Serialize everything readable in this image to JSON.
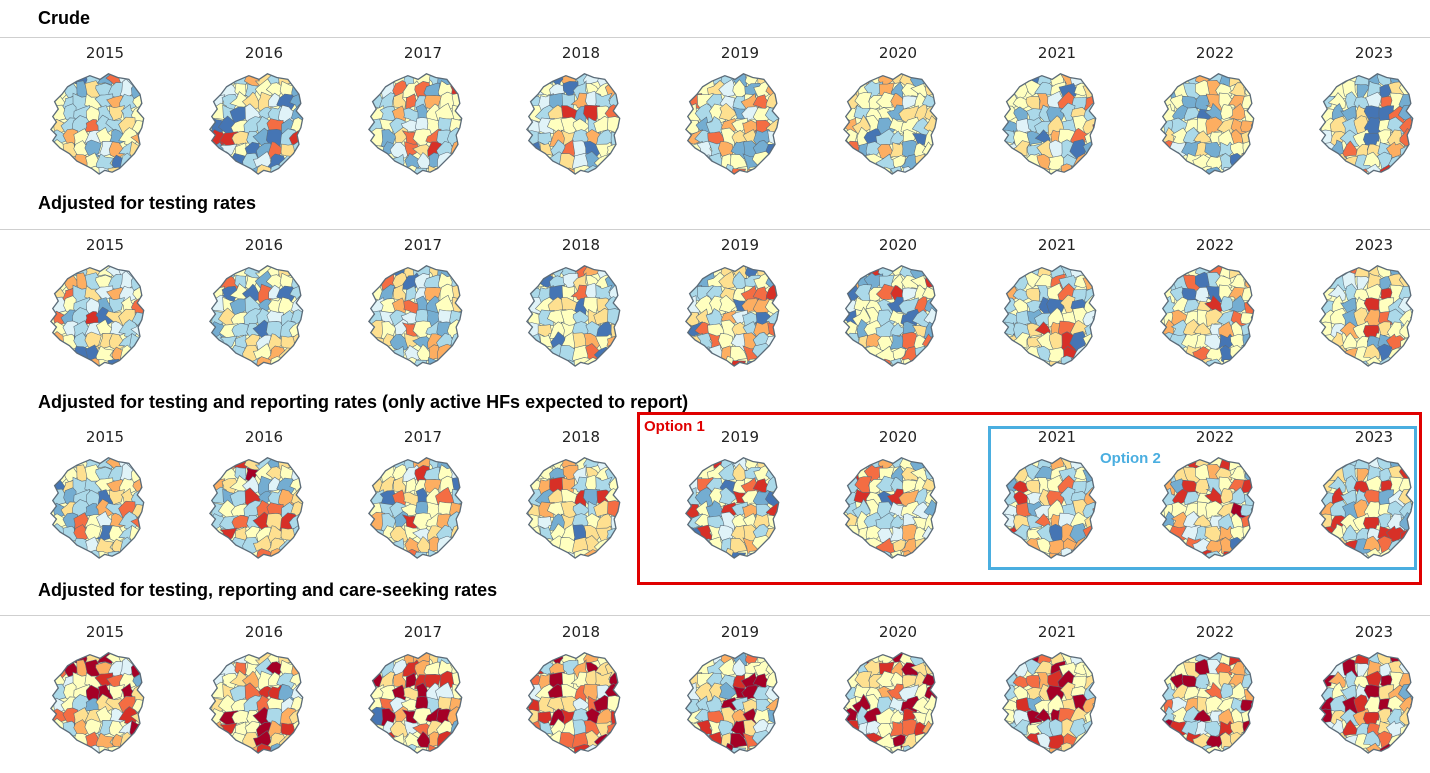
{
  "years": [
    "2015",
    "2016",
    "2017",
    "2018",
    "2019",
    "2020",
    "2021",
    "2022",
    "2023"
  ],
  "sections": [
    {
      "id": "crude",
      "title": "Crude"
    },
    {
      "id": "testing",
      "title": "Adjusted for testing rates"
    },
    {
      "id": "testing-reporting",
      "title": "Adjusted for testing and reporting rates (only active HFs expected to report)"
    },
    {
      "id": "testing-reporting-careseeking",
      "title": "Adjusted for testing, reporting and care-seeking rates"
    }
  ],
  "annotations": {
    "option1": {
      "label": "Option 1",
      "color": "#e00000"
    },
    "option2": {
      "label": "Option 2",
      "color": "#4aaee0"
    }
  },
  "colors": {
    "palette": [
      "#313695",
      "#4575b4",
      "#74add1",
      "#abd9e9",
      "#e0f3f8",
      "#ffffbf",
      "#fee090",
      "#fdae61",
      "#f46d43",
      "#d73027",
      "#a50026"
    ],
    "border": "#5b6b78"
  }
}
